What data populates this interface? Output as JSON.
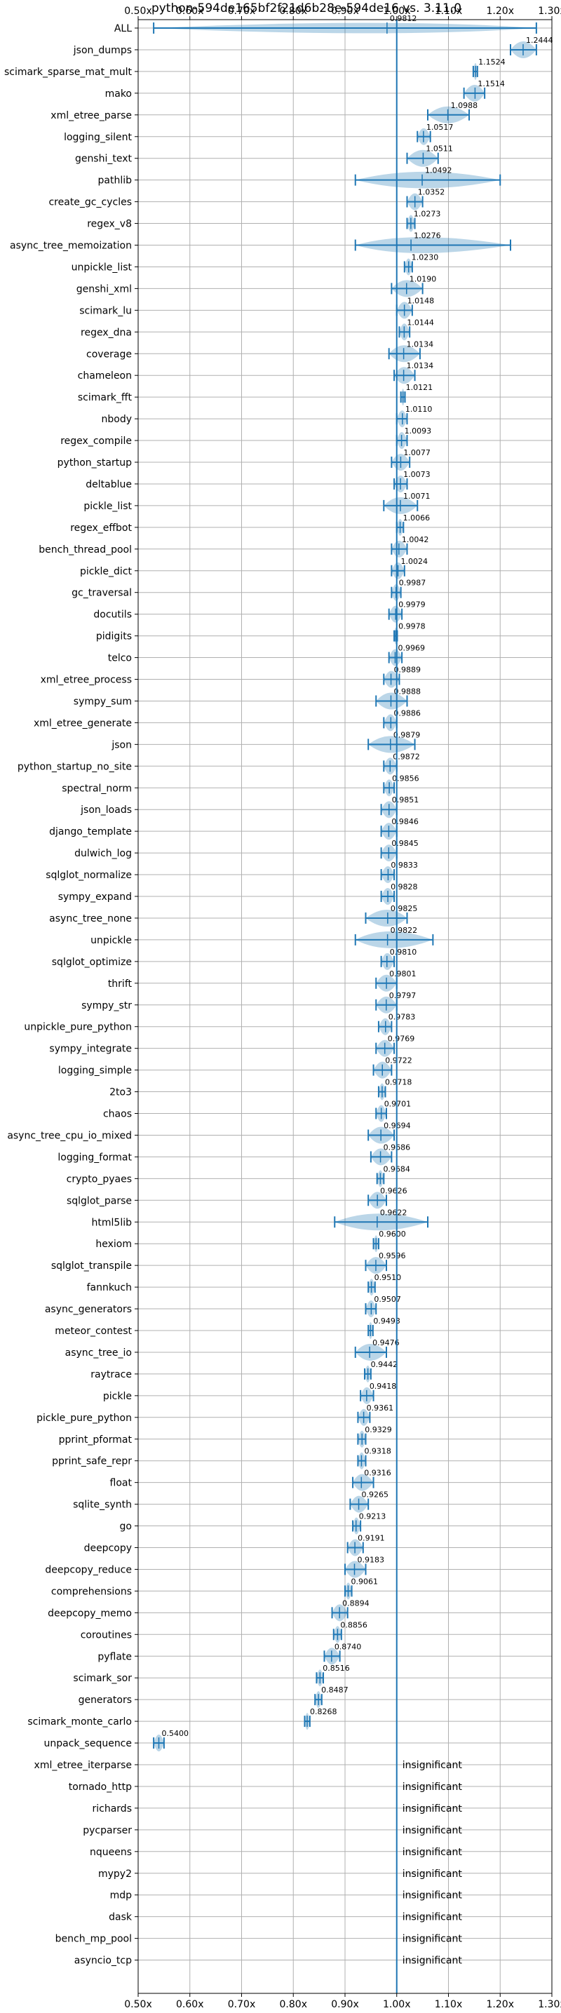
{
  "chart_data": {
    "type": "violin",
    "title": "python-594de165bf2f21d6b28e-594de16 vs. 3.11.0",
    "xlim": [
      0.5,
      1.3
    ],
    "x_ticks": [
      "0.50x",
      "0.60x",
      "0.70x",
      "0.80x",
      "0.90x",
      "1.00x",
      "1.10x",
      "1.20x",
      "1.30x"
    ],
    "x_tick_values": [
      0.5,
      0.6,
      0.7,
      0.8,
      0.9,
      1.0,
      1.1,
      1.2,
      1.3
    ],
    "reference_value": 1.0,
    "grid": true,
    "benchmarks": [
      {
        "name": "ALL",
        "value": 0.9812,
        "label": "0.9812",
        "lo": 0.53,
        "hi": 1.27
      },
      {
        "name": "json_dumps",
        "value": 1.2444,
        "label": "1.2444",
        "lo": 1.22,
        "hi": 1.27
      },
      {
        "name": "scimark_sparse_mat_mult",
        "value": 1.1524,
        "label": "1.1524",
        "lo": 1.148,
        "hi": 1.156
      },
      {
        "name": "mako",
        "value": 1.1514,
        "label": "1.1514",
        "lo": 1.13,
        "hi": 1.17
      },
      {
        "name": "xml_etree_parse",
        "value": 1.0988,
        "label": "1.0988",
        "lo": 1.06,
        "hi": 1.14
      },
      {
        "name": "logging_silent",
        "value": 1.0517,
        "label": "1.0517",
        "lo": 1.04,
        "hi": 1.065
      },
      {
        "name": "genshi_text",
        "value": 1.0511,
        "label": "1.0511",
        "lo": 1.02,
        "hi": 1.08
      },
      {
        "name": "pathlib",
        "value": 1.0492,
        "label": "1.0492",
        "lo": 0.92,
        "hi": 1.2
      },
      {
        "name": "create_gc_cycles",
        "value": 1.0352,
        "label": "1.0352",
        "lo": 1.02,
        "hi": 1.05
      },
      {
        "name": "regex_v8",
        "value": 1.0273,
        "label": "1.0273",
        "lo": 1.02,
        "hi": 1.035
      },
      {
        "name": "async_tree_memoization",
        "value": 1.0276,
        "label": "1.0276",
        "lo": 0.92,
        "hi": 1.22
      },
      {
        "name": "unpickle_list",
        "value": 1.023,
        "label": "1.0230",
        "lo": 1.015,
        "hi": 1.03
      },
      {
        "name": "genshi_xml",
        "value": 1.019,
        "label": "1.0190",
        "lo": 0.99,
        "hi": 1.05
      },
      {
        "name": "scimark_lu",
        "value": 1.0148,
        "label": "1.0148",
        "lo": 1.0,
        "hi": 1.03
      },
      {
        "name": "regex_dna",
        "value": 1.0144,
        "label": "1.0144",
        "lo": 1.005,
        "hi": 1.025
      },
      {
        "name": "coverage",
        "value": 1.0134,
        "label": "1.0134",
        "lo": 0.985,
        "hi": 1.045
      },
      {
        "name": "chameleon",
        "value": 1.0134,
        "label": "1.0134",
        "lo": 0.995,
        "hi": 1.035
      },
      {
        "name": "scimark_fft",
        "value": 1.0121,
        "label": "1.0121",
        "lo": 1.008,
        "hi": 1.016
      },
      {
        "name": "nbody",
        "value": 1.011,
        "label": "1.0110",
        "lo": 1.0,
        "hi": 1.02
      },
      {
        "name": "regex_compile",
        "value": 1.0093,
        "label": "1.0093",
        "lo": 1.0,
        "hi": 1.02
      },
      {
        "name": "python_startup",
        "value": 1.0077,
        "label": "1.0077",
        "lo": 0.99,
        "hi": 1.025
      },
      {
        "name": "deltablue",
        "value": 1.0073,
        "label": "1.0073",
        "lo": 0.995,
        "hi": 1.02
      },
      {
        "name": "pickle_list",
        "value": 1.0071,
        "label": "1.0071",
        "lo": 0.975,
        "hi": 1.04
      },
      {
        "name": "regex_effbot",
        "value": 1.0066,
        "label": "1.0066",
        "lo": 1.0,
        "hi": 1.013
      },
      {
        "name": "bench_thread_pool",
        "value": 1.0042,
        "label": "1.0042",
        "lo": 0.99,
        "hi": 1.02
      },
      {
        "name": "pickle_dict",
        "value": 1.0024,
        "label": "1.0024",
        "lo": 0.99,
        "hi": 1.015
      },
      {
        "name": "gc_traversal",
        "value": 0.9987,
        "label": "0.9987",
        "lo": 0.99,
        "hi": 1.008
      },
      {
        "name": "docutils",
        "value": 0.9979,
        "label": "0.9979",
        "lo": 0.985,
        "hi": 1.01
      },
      {
        "name": "pidigits",
        "value": 0.9978,
        "label": "0.9978",
        "lo": 0.995,
        "hi": 1.001
      },
      {
        "name": "telco",
        "value": 0.9969,
        "label": "0.9969",
        "lo": 0.985,
        "hi": 1.01
      },
      {
        "name": "xml_etree_process",
        "value": 0.9889,
        "label": "0.9889",
        "lo": 0.975,
        "hi": 1.005
      },
      {
        "name": "sympy_sum",
        "value": 0.9888,
        "label": "0.9888",
        "lo": 0.96,
        "hi": 1.02
      },
      {
        "name": "xml_etree_generate",
        "value": 0.9886,
        "label": "0.9886",
        "lo": 0.975,
        "hi": 1.0
      },
      {
        "name": "json",
        "value": 0.9879,
        "label": "0.9879",
        "lo": 0.945,
        "hi": 1.035
      },
      {
        "name": "python_startup_no_site",
        "value": 0.9872,
        "label": "0.9872",
        "lo": 0.975,
        "hi": 1.0
      },
      {
        "name": "spectral_norm",
        "value": 0.9856,
        "label": "0.9856",
        "lo": 0.975,
        "hi": 0.995
      },
      {
        "name": "json_loads",
        "value": 0.9851,
        "label": "0.9851",
        "lo": 0.97,
        "hi": 1.0
      },
      {
        "name": "django_template",
        "value": 0.9846,
        "label": "0.9846",
        "lo": 0.97,
        "hi": 1.0
      },
      {
        "name": "dulwich_log",
        "value": 0.9845,
        "label": "0.9845",
        "lo": 0.97,
        "hi": 1.0
      },
      {
        "name": "sqlglot_normalize",
        "value": 0.9833,
        "label": "0.9833",
        "lo": 0.97,
        "hi": 0.995
      },
      {
        "name": "sympy_expand",
        "value": 0.9828,
        "label": "0.9828",
        "lo": 0.97,
        "hi": 0.995
      },
      {
        "name": "async_tree_none",
        "value": 0.9825,
        "label": "0.9825",
        "lo": 0.94,
        "hi": 1.02
      },
      {
        "name": "unpickle",
        "value": 0.9822,
        "label": "0.9822",
        "lo": 0.92,
        "hi": 1.07
      },
      {
        "name": "sqlglot_optimize",
        "value": 0.981,
        "label": "0.9810",
        "lo": 0.97,
        "hi": 0.995
      },
      {
        "name": "thrift",
        "value": 0.9801,
        "label": "0.9801",
        "lo": 0.96,
        "hi": 1.0
      },
      {
        "name": "sympy_str",
        "value": 0.9797,
        "label": "0.9797",
        "lo": 0.96,
        "hi": 1.0
      },
      {
        "name": "unpickle_pure_python",
        "value": 0.9783,
        "label": "0.9783",
        "lo": 0.965,
        "hi": 0.99
      },
      {
        "name": "sympy_integrate",
        "value": 0.9769,
        "label": "0.9769",
        "lo": 0.96,
        "hi": 0.995
      },
      {
        "name": "logging_simple",
        "value": 0.9722,
        "label": "0.9722",
        "lo": 0.955,
        "hi": 0.99
      },
      {
        "name": "2to3",
        "value": 0.9718,
        "label": "0.9718",
        "lo": 0.965,
        "hi": 0.978
      },
      {
        "name": "chaos",
        "value": 0.9701,
        "label": "0.9701",
        "lo": 0.96,
        "hi": 0.98
      },
      {
        "name": "async_tree_cpu_io_mixed",
        "value": 0.9694,
        "label": "0.9694",
        "lo": 0.945,
        "hi": 0.995
      },
      {
        "name": "logging_format",
        "value": 0.9686,
        "label": "0.9686",
        "lo": 0.95,
        "hi": 0.99
      },
      {
        "name": "crypto_pyaes",
        "value": 0.9684,
        "label": "0.9684",
        "lo": 0.962,
        "hi": 0.975
      },
      {
        "name": "sqlglot_parse",
        "value": 0.9626,
        "label": "0.9626",
        "lo": 0.945,
        "hi": 0.98
      },
      {
        "name": "html5lib",
        "value": 0.9622,
        "label": "0.9622",
        "lo": 0.88,
        "hi": 1.06
      },
      {
        "name": "hexiom",
        "value": 0.96,
        "label": "0.9600",
        "lo": 0.955,
        "hi": 0.965
      },
      {
        "name": "sqlglot_transpile",
        "value": 0.9596,
        "label": "0.9596",
        "lo": 0.94,
        "hi": 0.98
      },
      {
        "name": "fannkuch",
        "value": 0.951,
        "label": "0.9510",
        "lo": 0.945,
        "hi": 0.958
      },
      {
        "name": "async_generators",
        "value": 0.9507,
        "label": "0.9507",
        "lo": 0.94,
        "hi": 0.96
      },
      {
        "name": "meteor_contest",
        "value": 0.9493,
        "label": "0.9493",
        "lo": 0.945,
        "hi": 0.954
      },
      {
        "name": "async_tree_io",
        "value": 0.9476,
        "label": "0.9476",
        "lo": 0.92,
        "hi": 0.98
      },
      {
        "name": "raytrace",
        "value": 0.9442,
        "label": "0.9442",
        "lo": 0.938,
        "hi": 0.95
      },
      {
        "name": "pickle",
        "value": 0.9418,
        "label": "0.9418",
        "lo": 0.93,
        "hi": 0.955
      },
      {
        "name": "pickle_pure_python",
        "value": 0.9361,
        "label": "0.9361",
        "lo": 0.925,
        "hi": 0.948
      },
      {
        "name": "pprint_pformat",
        "value": 0.9329,
        "label": "0.9329",
        "lo": 0.925,
        "hi": 0.94
      },
      {
        "name": "pprint_safe_repr",
        "value": 0.9318,
        "label": "0.9318",
        "lo": 0.925,
        "hi": 0.94
      },
      {
        "name": "float",
        "value": 0.9316,
        "label": "0.9316",
        "lo": 0.915,
        "hi": 0.955
      },
      {
        "name": "sqlite_synth",
        "value": 0.9265,
        "label": "0.9265",
        "lo": 0.91,
        "hi": 0.945
      },
      {
        "name": "go",
        "value": 0.9213,
        "label": "0.9213",
        "lo": 0.915,
        "hi": 0.93
      },
      {
        "name": "deepcopy",
        "value": 0.9191,
        "label": "0.9191",
        "lo": 0.905,
        "hi": 0.935
      },
      {
        "name": "deepcopy_reduce",
        "value": 0.9183,
        "label": "0.9183",
        "lo": 0.9,
        "hi": 0.94
      },
      {
        "name": "comprehensions",
        "value": 0.9061,
        "label": "0.9061",
        "lo": 0.9,
        "hi": 0.913
      },
      {
        "name": "deepcopy_memo",
        "value": 0.8894,
        "label": "0.8894",
        "lo": 0.875,
        "hi": 0.905
      },
      {
        "name": "coroutines",
        "value": 0.8856,
        "label": "0.8856",
        "lo": 0.878,
        "hi": 0.893
      },
      {
        "name": "pyflate",
        "value": 0.874,
        "label": "0.8740",
        "lo": 0.86,
        "hi": 0.89
      },
      {
        "name": "scimark_sor",
        "value": 0.8516,
        "label": "0.8516",
        "lo": 0.845,
        "hi": 0.858
      },
      {
        "name": "generators",
        "value": 0.8487,
        "label": "0.8487",
        "lo": 0.842,
        "hi": 0.855
      },
      {
        "name": "scimark_monte_carlo",
        "value": 0.8268,
        "label": "0.8268",
        "lo": 0.822,
        "hi": 0.832
      },
      {
        "name": "unpack_sequence",
        "value": 0.54,
        "label": "0.5400",
        "lo": 0.53,
        "hi": 0.55
      },
      {
        "name": "xml_etree_iterparse",
        "label": "insignificant"
      },
      {
        "name": "tornado_http",
        "label": "insignificant"
      },
      {
        "name": "richards",
        "label": "insignificant"
      },
      {
        "name": "pycparser",
        "label": "insignificant"
      },
      {
        "name": "nqueens",
        "label": "insignificant"
      },
      {
        "name": "mypy2",
        "label": "insignificant"
      },
      {
        "name": "mdp",
        "label": "insignificant"
      },
      {
        "name": "dask",
        "label": "insignificant"
      },
      {
        "name": "bench_mp_pool",
        "label": "insignificant"
      },
      {
        "name": "asyncio_tcp",
        "label": "insignificant"
      }
    ]
  }
}
